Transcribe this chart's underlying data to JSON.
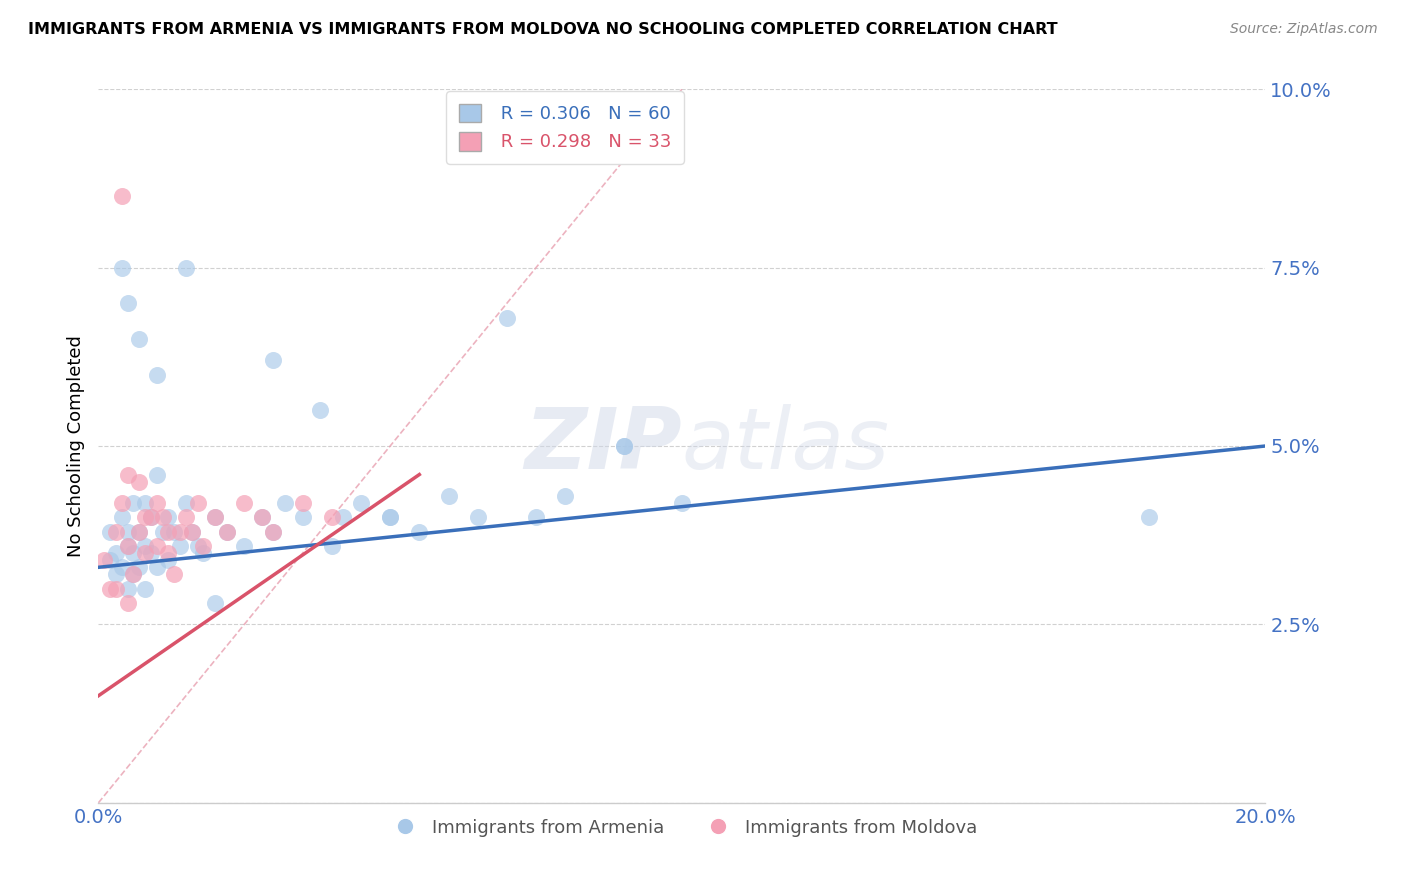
{
  "title": "IMMIGRANTS FROM ARMENIA VS IMMIGRANTS FROM MOLDOVA NO SCHOOLING COMPLETED CORRELATION CHART",
  "source": "Source: ZipAtlas.com",
  "ylabel": "No Schooling Completed",
  "xlim": [
    0.0,
    0.2
  ],
  "ylim": [
    0.0,
    0.1
  ],
  "xticks": [
    0.0,
    0.05,
    0.1,
    0.15,
    0.2
  ],
  "yticks": [
    0.0,
    0.025,
    0.05,
    0.075,
    0.1
  ],
  "blue_R": 0.306,
  "blue_N": 60,
  "pink_R": 0.298,
  "pink_N": 33,
  "blue_color": "#a8c8e8",
  "pink_color": "#f4a0b5",
  "blue_line_color": "#3a6fba",
  "pink_line_color": "#d9536a",
  "ref_line_color": "#e8a0b0",
  "legend_label_blue": "Immigrants from Armenia",
  "legend_label_pink": "Immigrants from Moldova",
  "blue_scatter_x": [
    0.002,
    0.002,
    0.003,
    0.003,
    0.004,
    0.004,
    0.005,
    0.005,
    0.005,
    0.006,
    0.006,
    0.006,
    0.007,
    0.007,
    0.008,
    0.008,
    0.008,
    0.009,
    0.009,
    0.01,
    0.01,
    0.011,
    0.012,
    0.012,
    0.013,
    0.014,
    0.015,
    0.016,
    0.017,
    0.018,
    0.02,
    0.022,
    0.025,
    0.028,
    0.03,
    0.032,
    0.035,
    0.038,
    0.04,
    0.042,
    0.045,
    0.05,
    0.055,
    0.06,
    0.065,
    0.07,
    0.075,
    0.08,
    0.09,
    0.1,
    0.004,
    0.005,
    0.007,
    0.01,
    0.015,
    0.02,
    0.03,
    0.05,
    0.09,
    0.18
  ],
  "blue_scatter_y": [
    0.034,
    0.038,
    0.035,
    0.032,
    0.033,
    0.04,
    0.03,
    0.036,
    0.038,
    0.032,
    0.035,
    0.042,
    0.033,
    0.038,
    0.03,
    0.036,
    0.042,
    0.035,
    0.04,
    0.033,
    0.046,
    0.038,
    0.034,
    0.04,
    0.038,
    0.036,
    0.042,
    0.038,
    0.036,
    0.035,
    0.04,
    0.038,
    0.036,
    0.04,
    0.038,
    0.042,
    0.04,
    0.055,
    0.036,
    0.04,
    0.042,
    0.04,
    0.038,
    0.043,
    0.04,
    0.068,
    0.04,
    0.043,
    0.05,
    0.042,
    0.075,
    0.07,
    0.065,
    0.06,
    0.075,
    0.028,
    0.062,
    0.04,
    0.05,
    0.04
  ],
  "pink_scatter_x": [
    0.001,
    0.002,
    0.003,
    0.004,
    0.005,
    0.005,
    0.006,
    0.007,
    0.008,
    0.009,
    0.01,
    0.01,
    0.011,
    0.012,
    0.012,
    0.013,
    0.014,
    0.015,
    0.016,
    0.017,
    0.018,
    0.02,
    0.022,
    0.025,
    0.028,
    0.03,
    0.035,
    0.04,
    0.003,
    0.004,
    0.005,
    0.007,
    0.008
  ],
  "pink_scatter_y": [
    0.034,
    0.03,
    0.038,
    0.042,
    0.028,
    0.036,
    0.032,
    0.038,
    0.035,
    0.04,
    0.036,
    0.042,
    0.04,
    0.038,
    0.035,
    0.032,
    0.038,
    0.04,
    0.038,
    0.042,
    0.036,
    0.04,
    0.038,
    0.042,
    0.04,
    0.038,
    0.042,
    0.04,
    0.03,
    0.085,
    0.046,
    0.045,
    0.04
  ],
  "blue_line_x": [
    0.0,
    0.2
  ],
  "blue_line_y": [
    0.033,
    0.05
  ],
  "pink_line_x": [
    0.0,
    0.055
  ],
  "pink_line_y": [
    0.015,
    0.046
  ],
  "ref_line_x": [
    0.0,
    0.1
  ],
  "ref_line_y": [
    0.0,
    0.1
  ]
}
